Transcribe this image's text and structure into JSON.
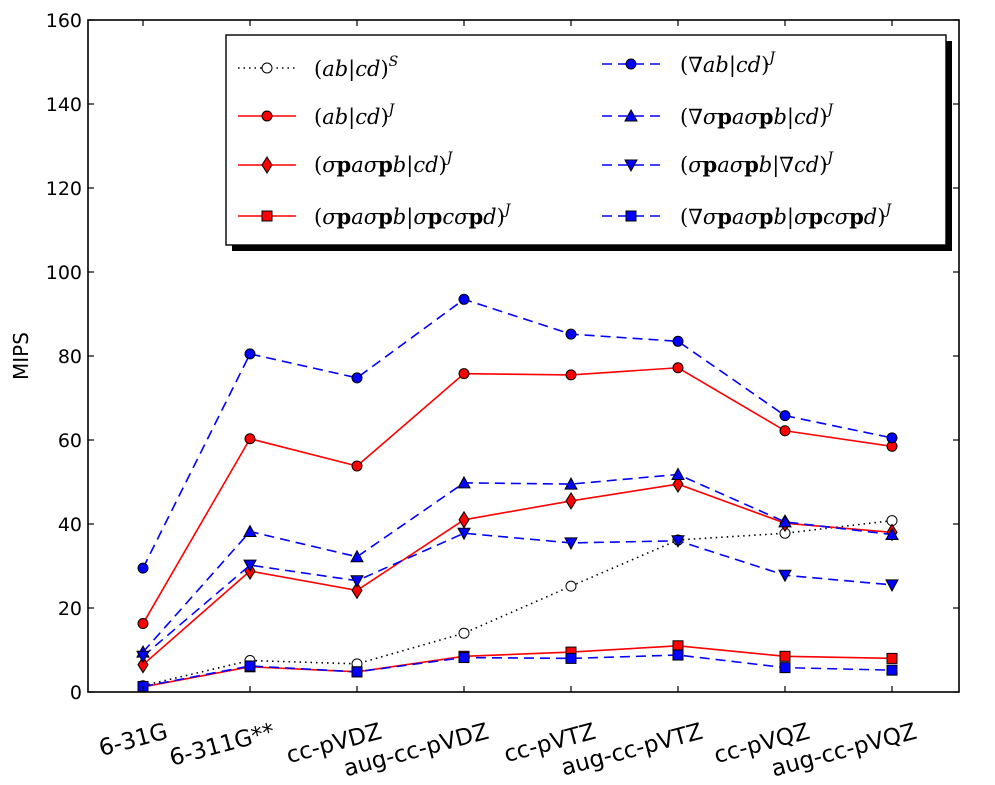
{
  "chart_data": {
    "type": "line",
    "categories": [
      "6-31G",
      "6-311G**",
      "cc-pVDZ",
      "aug-cc-pVDZ",
      "cc-pVTZ",
      "aug-cc-pVTZ",
      "cc-pVQZ",
      "aug-cc-pVQZ"
    ],
    "ylabel": "MIPS",
    "ylim": [
      0,
      160
    ],
    "yticks": [
      0,
      20,
      40,
      60,
      80,
      100,
      120,
      140,
      160
    ],
    "legend_position": "top-right",
    "grid": false,
    "series": [
      {
        "name": "(ab|cd)^S",
        "color": "#000000",
        "dash": "dotted",
        "marker": "circle",
        "marker_fill": "#ffffff",
        "values": [
          1.5,
          7.5,
          6.7,
          14.0,
          25.2,
          36.2,
          37.8,
          40.8
        ]
      },
      {
        "name": "(ab|cd)^J",
        "color": "#ff0000",
        "dash": "solid",
        "marker": "circle",
        "marker_fill": "#ff0000",
        "values": [
          16.3,
          60.3,
          53.8,
          75.8,
          75.5,
          77.2,
          62.2,
          58.5
        ]
      },
      {
        "name": "(σpaσpb|cd)^J",
        "color": "#ff0000",
        "dash": "solid",
        "marker": "diamond",
        "marker_fill": "#ff0000",
        "values": [
          6.5,
          28.8,
          24.2,
          41.0,
          45.5,
          49.5,
          40.2,
          38.0
        ]
      },
      {
        "name": "(σpaσpb|σpcσpd)^J",
        "color": "#ff0000",
        "dash": "solid",
        "marker": "square",
        "marker_fill": "#ff0000",
        "values": [
          1.2,
          6.0,
          4.8,
          8.5,
          9.5,
          11.0,
          8.5,
          8.0
        ]
      },
      {
        "name": "(∇ab|cd)^J",
        "color": "#0000ff",
        "dash": "dashed",
        "marker": "circle",
        "marker_fill": "#0000ff",
        "values": [
          29.5,
          80.5,
          74.8,
          93.5,
          85.2,
          83.5,
          65.8,
          60.5
        ]
      },
      {
        "name": "(∇σpaσpb|cd)^J",
        "color": "#0000ff",
        "dash": "dashed",
        "marker": "triangle-up",
        "marker_fill": "#0000ff",
        "values": [
          9.5,
          38.2,
          32.2,
          49.8,
          49.5,
          51.8,
          40.5,
          37.5
        ]
      },
      {
        "name": "(σpaσpb|∇cd)^J",
        "color": "#0000ff",
        "dash": "dashed",
        "marker": "triangle-down",
        "marker_fill": "#0000ff",
        "values": [
          8.5,
          30.2,
          26.5,
          37.8,
          35.5,
          36.0,
          27.8,
          25.5
        ]
      },
      {
        "name": "(∇σpaσpb|σpcσpd)^J",
        "color": "#0000ff",
        "dash": "dashed",
        "marker": "square",
        "marker_fill": "#0000ff",
        "values": [
          1.3,
          6.2,
          4.8,
          8.2,
          8.0,
          8.8,
          5.8,
          5.2
        ]
      }
    ]
  }
}
